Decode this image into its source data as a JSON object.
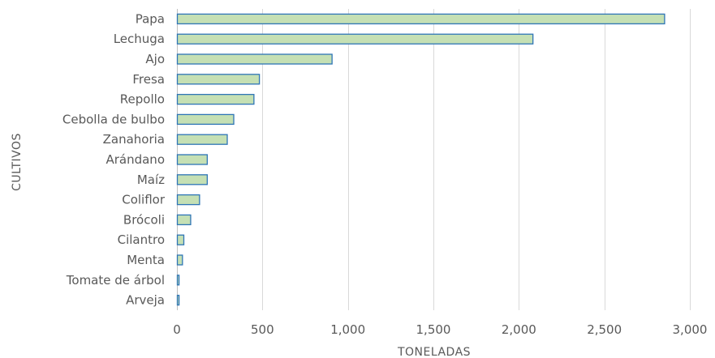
{
  "chart_data": {
    "type": "bar",
    "orientation": "horizontal",
    "title": "",
    "xlabel": "TONELADAS",
    "ylabel": "CULTIVOS",
    "categories": [
      "Papa",
      "Lechuga",
      "Ajo",
      "Fresa",
      "Repollo",
      "Cebolla de bulbo",
      "Zanahoria",
      "Arándano",
      "Maíz",
      "Coliflor",
      "Brócoli",
      "Cilantro",
      "Menta",
      "Tomate de árbol",
      "Arveja"
    ],
    "values": [
      2850,
      2080,
      905,
      480,
      448,
      330,
      292,
      175,
      175,
      130,
      78,
      38,
      30,
      10,
      10
    ],
    "xlim": [
      0,
      3000
    ],
    "xticks": [
      0,
      500,
      1000,
      1500,
      2000,
      2500,
      3000
    ],
    "xtick_labels": [
      "0",
      "500",
      "1,000",
      "1,500",
      "2,000",
      "2,500",
      "3,000"
    ],
    "grid": "vertical",
    "legend": "none",
    "colors": {
      "bar_fill": "#c5e0b4",
      "bar_stroke": "#2e75b6",
      "grid": "#d9d9d9",
      "text": "#595959"
    }
  }
}
